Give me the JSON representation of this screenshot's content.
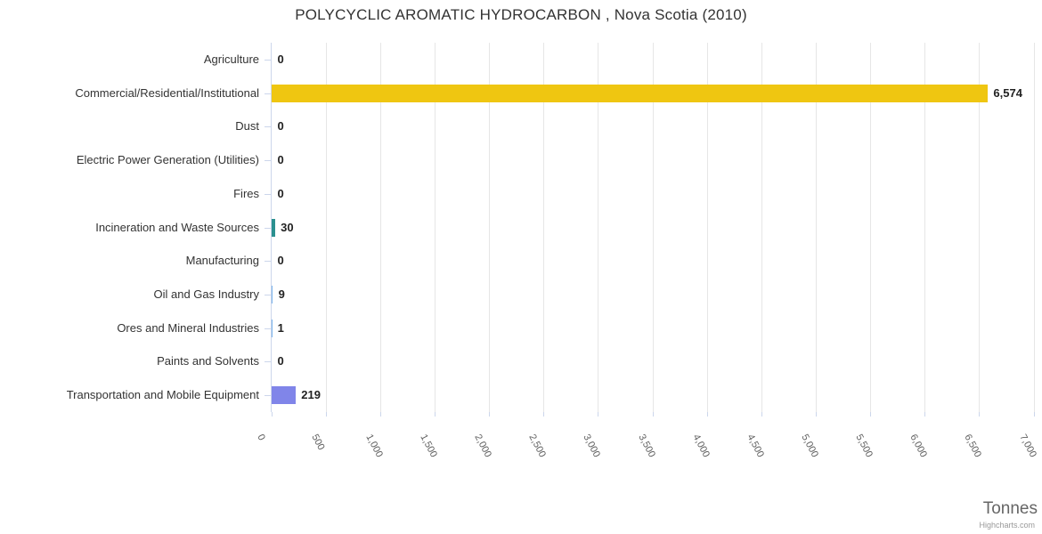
{
  "title": "POLYCYCLIC AROMATIC HYDROCARBON , Nova Scotia (2010)",
  "credit": "Highcharts.com",
  "chart_data": {
    "type": "bar",
    "orientation": "horizontal",
    "title": "POLYCYCLIC AROMATIC HYDROCARBON , Nova Scotia (2010)",
    "categories": [
      "Agriculture",
      "Commercial/Residential/Institutional",
      "Dust",
      "Electric Power Generation (Utilities)",
      "Fires",
      "Incineration and Waste Sources",
      "Manufacturing",
      "Oil and Gas Industry",
      "Ores and Mineral Industries",
      "Paints and Solvents",
      "Transportation and Mobile Equipment"
    ],
    "values": [
      0,
      6574,
      0,
      0,
      0,
      30,
      0,
      9,
      1,
      0,
      219
    ],
    "value_labels": [
      "0",
      "6,574",
      "0",
      "0",
      "0",
      "30",
      "0",
      "9",
      "1",
      "0",
      "219"
    ],
    "bar_colors": [
      null,
      "#EFC611",
      null,
      null,
      null,
      "#2B908F",
      null,
      null,
      null,
      null,
      "#8085E9"
    ],
    "xlabel": "Tonnes",
    "xlim": [
      0,
      7000
    ],
    "x_tick_interval": 500,
    "x_tick_labels": [
      "0",
      "500",
      "1,000",
      "1,500",
      "2,000",
      "2,500",
      "3,000",
      "3,500",
      "4,000",
      "4,500",
      "5,000",
      "5,500",
      "6,000",
      "6,500",
      "7,000"
    ],
    "grid": true,
    "legend": false
  },
  "colors": {
    "background": "#FFFFFF",
    "bar_yellow": "#EFC611",
    "bar_teal": "#2B908F",
    "bar_purple": "#8085E9",
    "grid_line": "#E6E6E6",
    "axis_line": "#CCD6EB",
    "title_text": "#333333",
    "category_text": "#333333",
    "value_text": "#222222",
    "tick_label_text": "#606060",
    "axis_title_text": "#666666",
    "credit_text": "#999999"
  }
}
